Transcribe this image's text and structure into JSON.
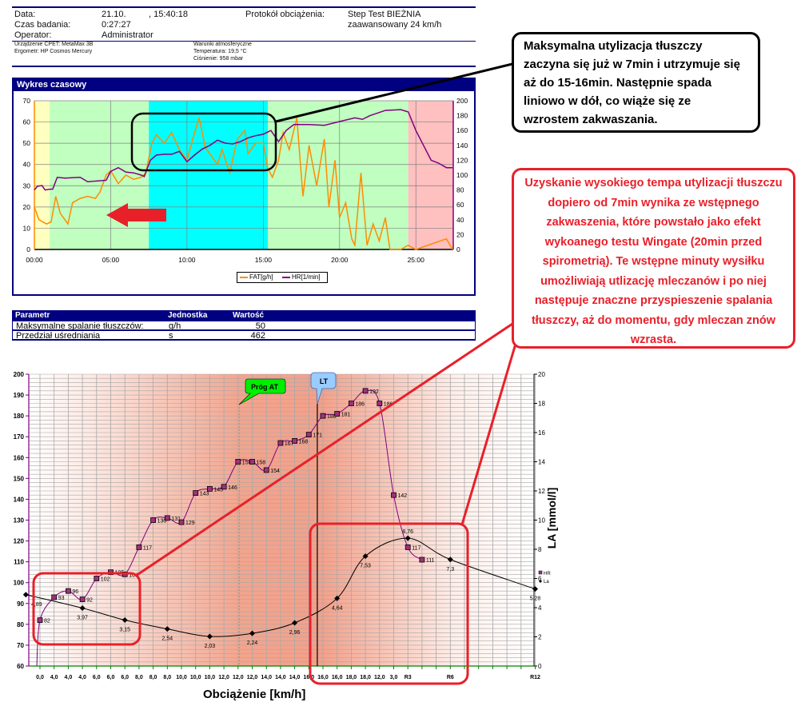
{
  "header": {
    "date_label": "Data:",
    "date_value": "21.10.",
    "time_value": ", 15:40:18",
    "duration_label": "Czas badania:",
    "duration_value": "0:27:27",
    "operator_label": "Operator:",
    "operator_value": "Administrator",
    "protocol_label": "Protokół obciążenia:",
    "protocol_value_1": "Step Test BIEŻNIA",
    "protocol_value_2": "zaawansowany 24 km/h",
    "device": "Urządzenie CPET: MetaMax 3B",
    "ergometer": "Ergometr: HP Cosmos Mercury",
    "conditions_title": "Warunki atmosferyczne",
    "temperature": "Temperatura: 19,5 °C",
    "pressure": "Ciśnienie: 958 mbar"
  },
  "time_chart": {
    "panel_title": "Wykres czasowy",
    "legend": [
      "FAT[g/h]",
      "HR[1/min]"
    ],
    "colors": {
      "fat": "#ff8c00",
      "hr": "#800080",
      "yellow": "#ffffc0",
      "green": "#c0ffc0",
      "cyan": "#00ffff",
      "pink": "#ffc0c0"
    }
  },
  "params_table": {
    "headers": [
      "Parametr",
      "Jednostka",
      "Wartość"
    ],
    "rows": [
      [
        "Maksymalne spalanie tłuszczów:",
        "g/h",
        "50"
      ],
      [
        "Przedział uśredniania",
        "s",
        "462"
      ]
    ]
  },
  "chart_data": [
    {
      "type": "line",
      "title": "Wykres czasowy",
      "x_ticks": [
        "00:00",
        "05:00",
        "10:00",
        "15:00",
        "20:00",
        "25:00"
      ],
      "xlim_min": [
        0,
        27.45
      ],
      "ylim_left": [
        0,
        70
      ],
      "yticks_left": [
        0,
        10,
        20,
        30,
        40,
        50,
        60,
        70
      ],
      "ylim_right": [
        0,
        200
      ],
      "yticks_right": [
        0,
        20,
        40,
        60,
        80,
        100,
        120,
        140,
        160,
        180,
        200
      ],
      "grid": true,
      "legend": "bottom",
      "bands_min": [
        {
          "from": 0,
          "to": 1,
          "color": "yellow"
        },
        {
          "from": 1,
          "to": 7.5,
          "color": "green"
        },
        {
          "from": 7.5,
          "to": 15.3,
          "color": "cyan"
        },
        {
          "from": 15.3,
          "to": 24.5,
          "color": "green"
        },
        {
          "from": 24.5,
          "to": 27.45,
          "color": "pink"
        }
      ],
      "series": [
        {
          "name": "FAT[g/h]",
          "axis": "left",
          "x": [
            0,
            0.3,
            0.8,
            1.1,
            1.4,
            1.7,
            2.2,
            2.5,
            3,
            3.5,
            4,
            4.3,
            4.7,
            5,
            5.5,
            6,
            6.5,
            7,
            7.3,
            7.7,
            8,
            8.5,
            9,
            9.5,
            10,
            10.5,
            10.8,
            11.2,
            11.5,
            12,
            12.3,
            12.8,
            13.3,
            13.8,
            14,
            14.5,
            15,
            15.3,
            15.6,
            16,
            16.3,
            16.7,
            17.2,
            17.6,
            18,
            18.5,
            19,
            19.3,
            19.7,
            20,
            20.4,
            20.8,
            21,
            21.4,
            21.8,
            22.2,
            22.6,
            23,
            23.3,
            24,
            24.5,
            25,
            27,
            27.4
          ],
          "y": [
            20,
            14,
            12,
            13,
            25,
            17,
            12,
            22,
            24,
            25,
            24,
            27,
            35,
            37,
            31,
            35,
            33,
            34,
            36,
            50,
            54,
            50,
            55,
            47,
            42,
            55,
            62,
            48,
            45,
            40,
            47,
            36,
            52,
            56,
            45,
            50,
            50,
            38,
            34,
            42,
            55,
            47,
            62,
            25,
            49,
            30,
            52,
            20,
            42,
            15,
            22,
            5,
            2,
            36,
            2,
            12,
            4,
            15,
            0,
            0,
            2,
            0,
            5,
            0
          ]
        },
        {
          "name": "HR[1/min]",
          "axis": "right",
          "x": [
            0,
            0.2,
            0.5,
            0.7,
            1,
            1.2,
            1.5,
            2,
            3,
            3.5,
            4,
            4.7,
            5,
            5.5,
            6,
            6.5,
            7,
            7.2,
            7.6,
            8,
            8.5,
            9,
            9.5,
            10,
            10.5,
            11,
            11.5,
            12,
            12.5,
            13,
            13.5,
            14,
            14.5,
            15,
            15.5,
            16,
            16.5,
            17,
            18,
            19,
            20,
            21,
            21.5,
            22,
            23,
            24,
            24.5,
            25,
            25.5,
            26,
            26.5,
            27,
            27.4
          ],
          "y": [
            80,
            85,
            86,
            80,
            81,
            81,
            97,
            96,
            97,
            91,
            92,
            93,
            105,
            110,
            104,
            103,
            100,
            98,
            120,
            127,
            128,
            128,
            132,
            118,
            127,
            135,
            140,
            147,
            143,
            142,
            145,
            150,
            153,
            155,
            160,
            145,
            160,
            168,
            168,
            167,
            172,
            177,
            175,
            180,
            187,
            188,
            185,
            160,
            140,
            120,
            116,
            110,
            110
          ]
        }
      ]
    },
    {
      "type": "line",
      "xlabel": "Obciążenie [km/h]",
      "ylabel_right": "LA [mmol/l]",
      "x_tick_labels": [
        "0,0",
        "4,0",
        "4,0",
        "4,0",
        "6,0",
        "6,0",
        "6,0",
        "8,0",
        "8,0",
        "8,0",
        "10,0",
        "10,0",
        "10,0",
        "12,0",
        "12,0",
        "12,0",
        "14,0",
        "14,0",
        "14,0",
        "16,0",
        "16,0",
        "16,0",
        "18,0",
        "18,0",
        "12,0",
        "3,0",
        "R3",
        "",
        "",
        "R6",
        "",
        "",
        "",
        "",
        "",
        "R12"
      ],
      "ylim_left": [
        60,
        200
      ],
      "yticks_left": [
        60,
        70,
        80,
        90,
        100,
        110,
        120,
        130,
        140,
        150,
        160,
        170,
        180,
        190,
        200
      ],
      "ylim_right": [
        0,
        20
      ],
      "yticks_right": [
        0,
        2,
        4,
        6,
        8,
        10,
        12,
        14,
        16,
        18,
        20
      ],
      "grid": true,
      "legend": "right",
      "markers": [
        {
          "label": "Próg AT",
          "at_index": 14.1,
          "color": "#00ee00"
        },
        {
          "label": "LT",
          "at_index": 19.6,
          "color": "#99ccff"
        }
      ],
      "series": [
        {
          "name": "HR",
          "axis": "left",
          "color": "#800080",
          "index": [
            0,
            1,
            2,
            3,
            4,
            5,
            6,
            7,
            8,
            9,
            10,
            11,
            12,
            13,
            14,
            15,
            16,
            17,
            18,
            19,
            20,
            21,
            22,
            23,
            24,
            25,
            26,
            27
          ],
          "y": [
            82,
            93,
            96,
            92,
            102,
            105,
            104,
            117,
            130,
            131,
            129,
            143,
            145,
            146,
            158,
            158,
            154,
            167,
            168,
            171,
            180,
            181,
            186,
            192,
            186,
            142,
            117,
            111
          ],
          "labels": [
            "82",
            "93",
            "96",
            "92",
            "102",
            "105",
            "104",
            "117",
            "130",
            "131",
            "129",
            "143",
            "145",
            "146",
            "158",
            "158",
            "154",
            "167",
            "168",
            "171",
            "180",
            "181",
            "186",
            "192",
            "186",
            "142",
            "117",
            "111"
          ]
        },
        {
          "name": "La",
          "axis": "right",
          "color": "#000000",
          "index": [
            -1,
            3,
            6,
            9,
            12,
            15,
            18,
            21,
            23,
            26,
            29,
            35
          ],
          "y": [
            4.89,
            3.97,
            3.15,
            2.54,
            2.03,
            2.24,
            2.96,
            4.64,
            7.53,
            8.76,
            7.3,
            5.28
          ],
          "labels": [
            "4,89",
            "3,97",
            "3,15",
            "2,54",
            "2,03",
            "2,24",
            "2,96",
            "4,64",
            "7,53",
            "8,76",
            "7,3",
            "5,28"
          ]
        }
      ]
    }
  ],
  "annotations": {
    "callout_black": "Maksymalna utylizacja tłuszczy zaczyna się już w 7min i utrzymuje się aż do 15-16min. Następnie spada liniowo w dół, co wiąże się ze wzrostem zakwaszania.",
    "callout_red": "Uzyskanie wysokiego tempa utylizacji tłuszczu dopiero od 7min wynika ze wstępnego zakwaszenia, które powstało jako efekt wykoanego testu Wingate (20min przed spirometrią). Te wstępne minuty wysiłku umożliwiają utlizację mleczanów i po niej następuje znaczne przyspieszenie spalania tłuszczy, aż do momentu, gdy mleczan znów wzrasta.",
    "colors": {
      "black": "#000000",
      "red": "#e8202a"
    }
  }
}
